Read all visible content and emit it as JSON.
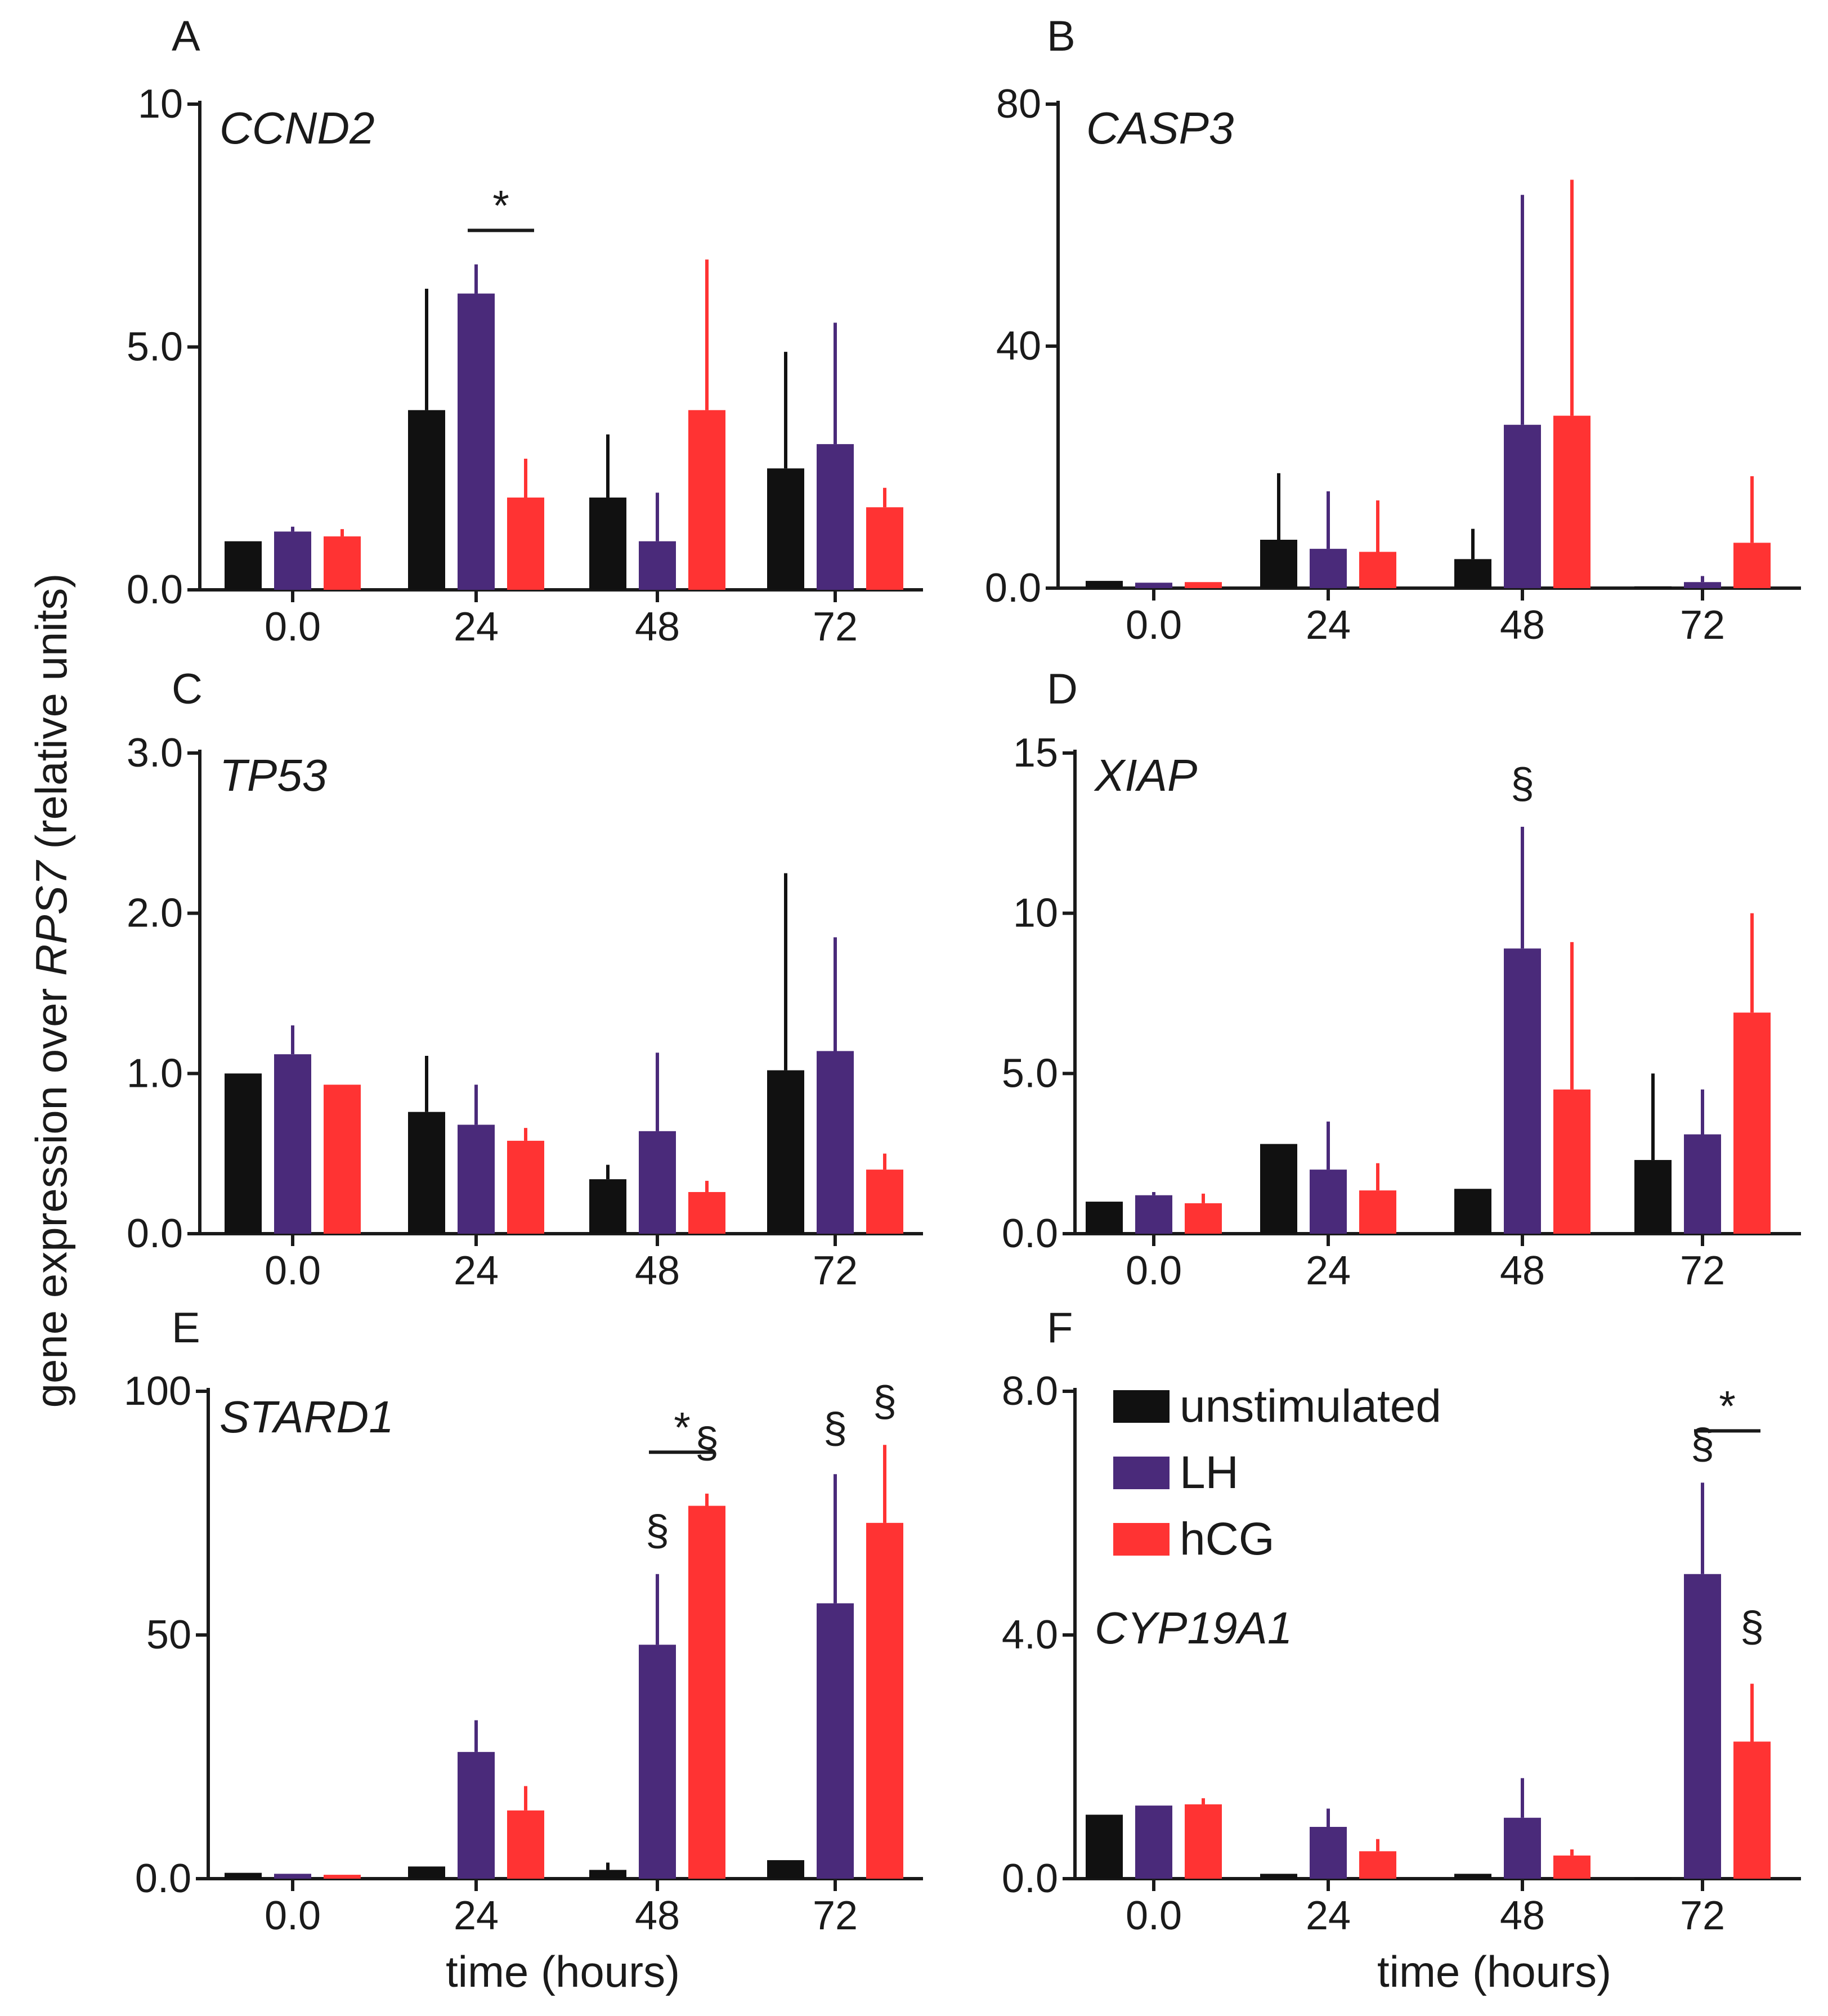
{
  "series_colors": {
    "unstimulated": "#111111",
    "LH": "#4a2a7a",
    "hCG": "#ff3333"
  },
  "legend": [
    {
      "key": "unstimulated",
      "label": "unstimulated"
    },
    {
      "key": "LH",
      "label": "LH"
    },
    {
      "key": "hCG",
      "label": "hCG"
    }
  ],
  "ylabel": {
    "pre": "gene expression over ",
    "gene": "RPS7",
    "post": " (relative units)"
  },
  "xlabel": "time (hours)",
  "chart_data": [
    {
      "type": "bar",
      "panel": "A",
      "gene": "CCND2",
      "categories": [
        "0.0",
        "24",
        "48",
        "72"
      ],
      "ylim": [
        0,
        10
      ],
      "yticks": [
        0,
        5,
        10
      ],
      "ytick_labels": [
        "0.0",
        "5.0",
        "10"
      ],
      "series": [
        {
          "name": "unstimulated",
          "values": [
            1.0,
            3.7,
            1.9,
            2.5
          ],
          "errors": [
            0,
            2.5,
            1.3,
            2.4
          ]
        },
        {
          "name": "LH",
          "values": [
            1.2,
            6.1,
            1.0,
            3.0
          ],
          "errors": [
            0.1,
            0.6,
            1.0,
            2.5
          ]
        },
        {
          "name": "hCG",
          "values": [
            1.1,
            1.9,
            3.7,
            1.7
          ],
          "errors": [
            0.15,
            0.8,
            3.1,
            0.4
          ]
        }
      ],
      "annotations": [
        {
          "text": "*",
          "group": 1,
          "from": 1,
          "to": 2,
          "y": 7.4,
          "line": true
        }
      ]
    },
    {
      "type": "bar",
      "panel": "B",
      "gene": "CASP3",
      "categories": [
        "0.0",
        "24",
        "48",
        "72"
      ],
      "ylim": [
        0,
        80
      ],
      "yticks": [
        0,
        40,
        80
      ],
      "ytick_labels": [
        "0.0",
        "40",
        "80"
      ],
      "series": [
        {
          "name": "unstimulated",
          "values": [
            1.2,
            8.0,
            4.8,
            0.3
          ],
          "errors": [
            0,
            11.0,
            5.0,
            0
          ]
        },
        {
          "name": "LH",
          "values": [
            0.9,
            6.5,
            27.0,
            1.0
          ],
          "errors": [
            0,
            9.5,
            38.0,
            1.0
          ]
        },
        {
          "name": "hCG",
          "values": [
            1.0,
            6.0,
            28.5,
            7.5
          ],
          "errors": [
            0,
            8.5,
            39.0,
            11.0
          ]
        }
      ],
      "annotations": []
    },
    {
      "type": "bar",
      "panel": "C",
      "gene": "TP53",
      "categories": [
        "0.0",
        "24",
        "48",
        "72"
      ],
      "ylim": [
        0,
        3.0
      ],
      "yticks": [
        0,
        1,
        2,
        3
      ],
      "ytick_labels": [
        "0.0",
        "1.0",
        "2.0",
        "3.0"
      ],
      "series": [
        {
          "name": "unstimulated",
          "values": [
            1.0,
            0.76,
            0.34,
            1.02
          ],
          "errors": [
            0,
            0.35,
            0.09,
            1.23
          ]
        },
        {
          "name": "LH",
          "values": [
            1.12,
            0.68,
            0.64,
            1.14
          ],
          "errors": [
            0.18,
            0.25,
            0.49,
            0.71
          ]
        },
        {
          "name": "hCG",
          "values": [
            0.93,
            0.58,
            0.26,
            0.4
          ],
          "errors": [
            0,
            0.08,
            0.07,
            0.1
          ]
        }
      ],
      "annotations": []
    },
    {
      "type": "bar",
      "panel": "D",
      "gene": "XIAP",
      "categories": [
        "0.0",
        "24",
        "48",
        "72"
      ],
      "ylim": [
        0,
        15
      ],
      "yticks": [
        0,
        5,
        10,
        15
      ],
      "ytick_labels": [
        "0.0",
        "5.0",
        "10",
        "15"
      ],
      "series": [
        {
          "name": "unstimulated",
          "values": [
            1.0,
            2.8,
            1.4,
            2.3
          ],
          "errors": [
            0,
            0,
            0,
            2.7
          ]
        },
        {
          "name": "LH",
          "values": [
            1.2,
            2.0,
            8.9,
            3.1
          ],
          "errors": [
            0.1,
            1.5,
            3.8,
            1.4
          ]
        },
        {
          "name": "hCG",
          "values": [
            0.95,
            1.35,
            4.5,
            6.9
          ],
          "errors": [
            0.3,
            0.85,
            4.6,
            3.1
          ]
        }
      ],
      "annotations": [
        {
          "text": "§",
          "group": 2,
          "series": 1,
          "y": 13.6
        }
      ]
    },
    {
      "type": "bar",
      "panel": "E",
      "gene": "STARD1",
      "categories": [
        "0.0",
        "24",
        "48",
        "72"
      ],
      "ylim": [
        0,
        100
      ],
      "yticks": [
        0,
        50,
        100
      ],
      "ytick_labels": [
        "0.0",
        "50",
        "100"
      ],
      "series": [
        {
          "name": "unstimulated",
          "values": [
            1.2,
            2.5,
            1.8,
            3.8
          ],
          "errors": [
            0,
            0,
            1.5,
            0
          ]
        },
        {
          "name": "LH",
          "values": [
            1.0,
            26.0,
            48.0,
            56.5
          ],
          "errors": [
            0,
            6.5,
            14.5,
            26.5
          ]
        },
        {
          "name": "hCG",
          "values": [
            0.8,
            14.0,
            76.5,
            73.0
          ],
          "errors": [
            0,
            5.0,
            2.5,
            16.0
          ]
        }
      ],
      "annotations": [
        {
          "text": "*",
          "group": 2,
          "from": 1,
          "to": 2,
          "y": 87.5,
          "line": true
        },
        {
          "text": "§",
          "group": 2,
          "series": 1,
          "y": 68.5
        },
        {
          "text": "§",
          "group": 2,
          "series": 2,
          "y": 86.5
        },
        {
          "text": "§",
          "group": 3,
          "series": 1,
          "y": 89.5
        },
        {
          "text": "§",
          "group": 3,
          "series": 2,
          "y": 95.0
        }
      ]
    },
    {
      "type": "bar",
      "panel": "F",
      "gene": "CYP19A1",
      "categories": [
        "0.0",
        "24",
        "48",
        "72"
      ],
      "ylim": [
        0,
        8.0
      ],
      "yticks": [
        0,
        4,
        8
      ],
      "ytick_labels": [
        "0.0",
        "4.0",
        "8.0"
      ],
      "series": [
        {
          "name": "unstimulated",
          "values": [
            1.05,
            0.08,
            0.08,
            0.02
          ],
          "errors": [
            0,
            0,
            0,
            0
          ]
        },
        {
          "name": "LH",
          "values": [
            1.2,
            0.85,
            1.0,
            5.0
          ],
          "errors": [
            0,
            0.3,
            0.65,
            1.5
          ]
        },
        {
          "name": "hCG",
          "values": [
            1.22,
            0.45,
            0.38,
            2.25
          ],
          "errors": [
            0.1,
            0.2,
            0.1,
            0.95
          ]
        }
      ],
      "annotations": [
        {
          "text": "*",
          "group": 3,
          "from": 1,
          "to": 2,
          "y": 7.35,
          "line": true
        },
        {
          "text": "§",
          "group": 3,
          "series": 1,
          "y": 6.9
        },
        {
          "text": "§",
          "group": 3,
          "series": 2,
          "y": 3.9
        }
      ]
    }
  ]
}
